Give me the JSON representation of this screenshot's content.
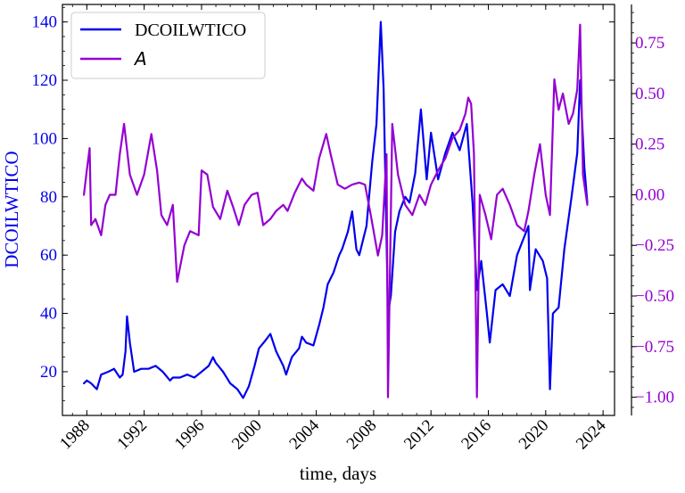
{
  "chart_data": {
    "type": "line",
    "xlabel": "time, days",
    "ylabel_left": "DCOILWTICO",
    "ylabel_right": "",
    "x_ticks": [
      "1988",
      "1992",
      "1996",
      "2000",
      "2004",
      "2008",
      "2012",
      "2016",
      "2020",
      "2024"
    ],
    "xlim": [
      1986.3,
      2024.8
    ],
    "ylim_left": [
      5,
      146
    ],
    "ylim_right": [
      -1.09,
      0.94
    ],
    "y_ticks_left": [
      "20",
      "40",
      "60",
      "80",
      "100",
      "120",
      "140"
    ],
    "y_ticks_right": [
      "−1.00",
      "−0.75",
      "−0.50",
      "−0.25",
      "0.00",
      "0.25",
      "0.50",
      "0.75"
    ],
    "grid": false,
    "legend_position": "top-left",
    "series": [
      {
        "name": "DCOILWTICO",
        "axis": "left",
        "color": "#0000ee",
        "x": [
          1987.8,
          1988.0,
          1988.3,
          1988.7,
          1989.0,
          1989.5,
          1989.9,
          1990.3,
          1990.5,
          1990.7,
          1990.8,
          1991.0,
          1991.3,
          1991.8,
          1992.3,
          1992.8,
          1993.3,
          1993.8,
          1994.0,
          1994.5,
          1995.0,
          1995.5,
          1996.0,
          1996.5,
          1996.8,
          1997.0,
          1997.5,
          1998.0,
          1998.5,
          1998.9,
          1999.3,
          1999.7,
          2000.0,
          2000.5,
          2000.8,
          2001.2,
          2001.7,
          2001.9,
          2002.3,
          2002.8,
          2003.0,
          2003.3,
          2003.8,
          2004.2,
          2004.5,
          2004.8,
          2005.2,
          2005.6,
          2005.8,
          2006.2,
          2006.5,
          2006.8,
          2007.0,
          2007.5,
          2007.9,
          2008.2,
          2008.5,
          2008.7,
          2009.0,
          2009.2,
          2009.5,
          2009.8,
          2010.2,
          2010.5,
          2010.9,
          2011.3,
          2011.7,
          2012.0,
          2012.5,
          2013.0,
          2013.5,
          2014.0,
          2014.5,
          2014.9,
          2015.2,
          2015.5,
          2015.9,
          2016.1,
          2016.5,
          2017.0,
          2017.5,
          2018.0,
          2018.8,
          2018.9,
          2019.3,
          2019.8,
          2020.1,
          2020.3,
          2020.5,
          2020.9,
          2021.3,
          2021.8,
          2022.2,
          2022.4,
          2022.7,
          2022.9
        ],
        "y": [
          16,
          17,
          16,
          14,
          19,
          20,
          21,
          18,
          19,
          27,
          39,
          30,
          20,
          21,
          21,
          22,
          20,
          17,
          18,
          18,
          19,
          18,
          20,
          22,
          25,
          23,
          20,
          16,
          14,
          11,
          15,
          22,
          28,
          31,
          33,
          27,
          22,
          19,
          25,
          28,
          32,
          30,
          29,
          36,
          42,
          50,
          54,
          60,
          62,
          68,
          75,
          62,
          60,
          70,
          92,
          105,
          140,
          117,
          40,
          46,
          68,
          75,
          80,
          78,
          88,
          110,
          86,
          102,
          86,
          95,
          102,
          96,
          105,
          78,
          48,
          58,
          40,
          30,
          48,
          50,
          46,
          60,
          70,
          48,
          62,
          58,
          52,
          14,
          40,
          42,
          62,
          80,
          95,
          120,
          90,
          78
        ]
      },
      {
        "name": "A",
        "axis": "right",
        "color": "#9400d3",
        "x": [
          1987.8,
          1988.0,
          1988.2,
          1988.3,
          1988.6,
          1989.0,
          1989.3,
          1989.6,
          1990.0,
          1990.3,
          1990.6,
          1991.0,
          1991.5,
          1992.0,
          1992.5,
          1992.9,
          1993.2,
          1993.6,
          1994.0,
          1994.3,
          1994.8,
          1995.2,
          1995.8,
          1996.0,
          1996.4,
          1996.8,
          1997.3,
          1997.8,
          1998.2,
          1998.6,
          1999.0,
          1999.5,
          1999.9,
          2000.3,
          2000.8,
          2001.2,
          2001.7,
          2002.0,
          2002.5,
          2003.0,
          2003.3,
          2003.8,
          2004.2,
          2004.7,
          2005.0,
          2005.5,
          2006.0,
          2006.5,
          2007.0,
          2007.4,
          2007.8,
          2008.3,
          2008.6,
          2008.9,
          2009.0,
          2009.3,
          2009.7,
          2010.2,
          2010.7,
          2011.2,
          2011.6,
          2012.0,
          2012.5,
          2013.0,
          2013.5,
          2014.0,
          2014.4,
          2014.6,
          2014.8,
          2015.0,
          2015.2,
          2015.4,
          2015.8,
          2016.2,
          2016.6,
          2017.0,
          2017.5,
          2018.0,
          2018.5,
          2018.8,
          2019.2,
          2019.6,
          2020.0,
          2020.3,
          2020.6,
          2020.9,
          2021.2,
          2021.6,
          2021.9,
          2022.2,
          2022.4,
          2022.6,
          2022.9
        ],
        "y": [
          0.0,
          0.12,
          0.23,
          -0.15,
          -0.12,
          -0.2,
          -0.05,
          0.0,
          0.0,
          0.2,
          0.35,
          0.1,
          0.0,
          0.1,
          0.3,
          0.12,
          -0.1,
          -0.15,
          -0.05,
          -0.43,
          -0.25,
          -0.18,
          -0.2,
          0.12,
          0.1,
          -0.06,
          -0.12,
          0.02,
          -0.06,
          -0.15,
          -0.05,
          0.0,
          0.01,
          -0.15,
          -0.12,
          -0.08,
          -0.05,
          -0.08,
          0.01,
          0.08,
          0.05,
          0.02,
          0.18,
          0.3,
          0.2,
          0.05,
          0.03,
          0.05,
          0.06,
          0.05,
          -0.1,
          -0.3,
          -0.2,
          0.2,
          -1.0,
          0.35,
          0.1,
          -0.05,
          -0.1,
          0.0,
          -0.05,
          0.05,
          0.12,
          0.18,
          0.28,
          0.32,
          0.4,
          0.48,
          0.45,
          0.2,
          -1.0,
          0.0,
          -0.1,
          -0.22,
          0.0,
          0.03,
          -0.05,
          -0.15,
          -0.18,
          -0.08,
          0.1,
          0.25,
          0.0,
          -0.1,
          0.57,
          0.42,
          0.5,
          0.35,
          0.4,
          0.52,
          0.84,
          0.1,
          -0.05
        ]
      }
    ]
  }
}
